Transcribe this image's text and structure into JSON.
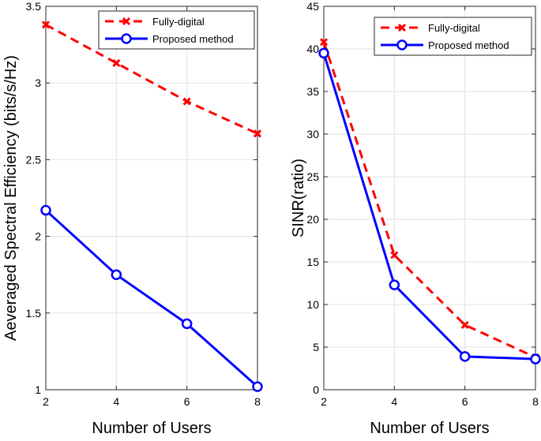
{
  "chart_data": [
    {
      "type": "line",
      "title": "",
      "xlabel": "Number of Users",
      "ylabel": "Aeveraged Spectral Efficiency (bits/s/Hz)",
      "x": [
        2,
        4,
        6,
        8
      ],
      "xlim": [
        2,
        8
      ],
      "ylim": [
        1,
        3.5
      ],
      "xticks": [
        2,
        4,
        6,
        8
      ],
      "yticks": [
        1,
        1.5,
        2,
        2.5,
        3,
        3.5
      ],
      "grid": true,
      "legend_location": "top-right",
      "series": [
        {
          "name": "Fully-digital",
          "values": [
            3.38,
            3.13,
            2.88,
            2.67
          ],
          "color": "#ff0000",
          "style": "dashed",
          "marker": "x"
        },
        {
          "name": "Proposed method",
          "values": [
            2.17,
            1.75,
            1.43,
            1.02
          ],
          "color": "#0000ff",
          "style": "solid",
          "marker": "o"
        }
      ]
    },
    {
      "type": "line",
      "title": "",
      "xlabel": "Number of Users",
      "ylabel": "SINR(ratio)",
      "x": [
        2,
        4,
        6,
        8
      ],
      "xlim": [
        2,
        8
      ],
      "ylim": [
        0,
        45
      ],
      "xticks": [
        2,
        4,
        6,
        8
      ],
      "yticks": [
        0,
        5,
        10,
        15,
        20,
        25,
        30,
        35,
        40,
        45
      ],
      "grid": true,
      "legend_location": "top-right",
      "series": [
        {
          "name": "Fully-digital",
          "values": [
            40.8,
            15.8,
            7.6,
            3.8
          ],
          "color": "#ff0000",
          "style": "dashed",
          "marker": "x"
        },
        {
          "name": "Proposed method",
          "values": [
            39.5,
            12.3,
            3.9,
            3.6
          ],
          "color": "#0000ff",
          "style": "solid",
          "marker": "o"
        }
      ]
    }
  ]
}
